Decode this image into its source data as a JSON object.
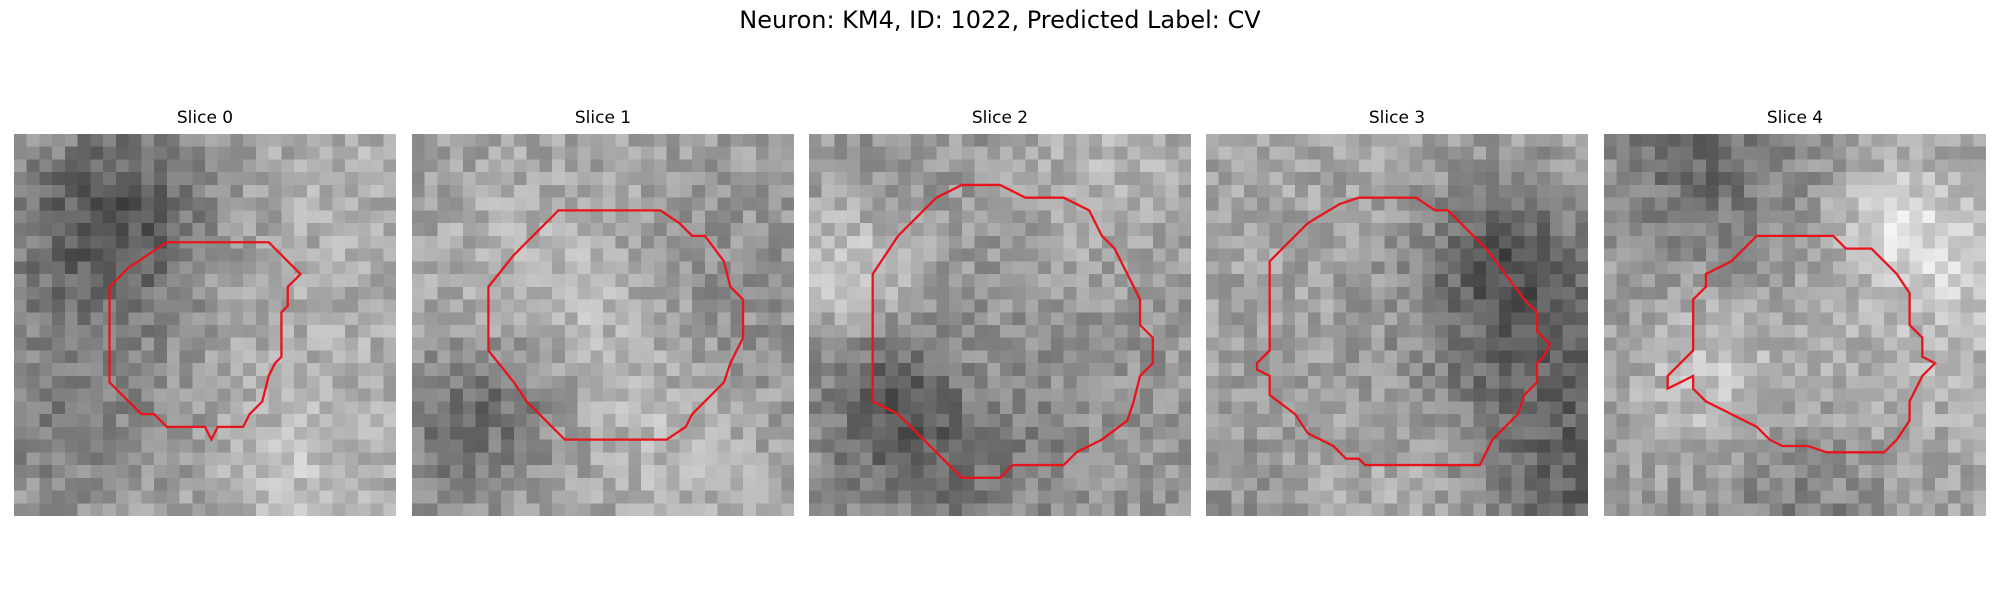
{
  "figure": {
    "title": "Neuron: KM4, ID: 1022, Predicted Label: CV",
    "contour_color": "#e8141c"
  },
  "panels": [
    {
      "title": "Slice 0",
      "seed": 11,
      "bright": 175,
      "contrast": 50
    },
    {
      "title": "Slice 1",
      "seed": 23,
      "bright": 160,
      "contrast": 55
    },
    {
      "title": "Slice 2",
      "seed": 37,
      "bright": 150,
      "contrast": 60
    },
    {
      "title": "Slice 3",
      "seed": 41,
      "bright": 165,
      "contrast": 55
    },
    {
      "title": "Slice 4",
      "seed": 59,
      "bright": 160,
      "contrast": 55
    }
  ]
}
